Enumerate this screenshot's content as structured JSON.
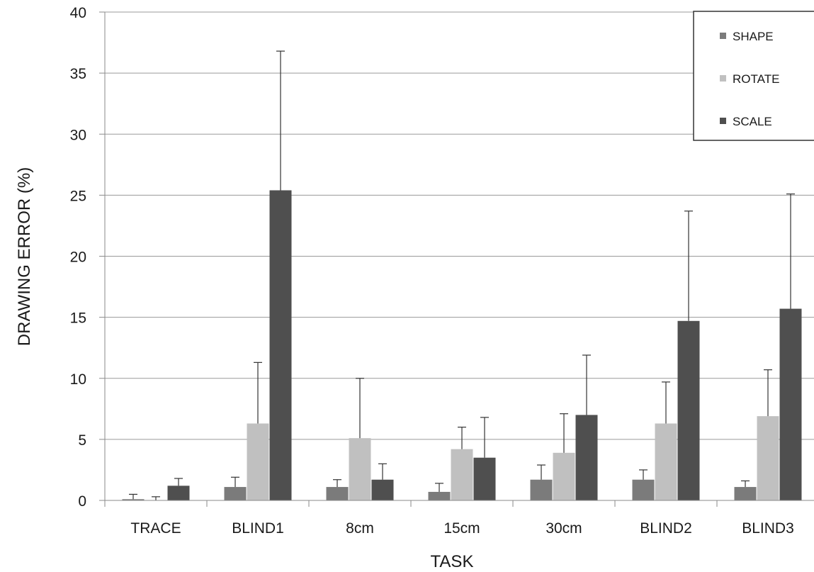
{
  "chart_data": {
    "type": "bar",
    "title": "",
    "xlabel": "TASK",
    "ylabel": "DRAWING ERROR (%)",
    "ylim": [
      0,
      40
    ],
    "yticks": [
      0,
      5,
      10,
      15,
      20,
      25,
      30,
      35,
      40
    ],
    "grid": "horizontal",
    "legend_position": "top-right",
    "categories": [
      "TRACE",
      "BLIND1",
      "8cm",
      "15cm",
      "30cm",
      "BLIND2",
      "BLIND3"
    ],
    "series": [
      {
        "name": "SHAPE",
        "color": "#7b7b7b",
        "values": [
          0.1,
          1.1,
          1.1,
          0.7,
          1.7,
          1.7,
          1.1
        ],
        "error": [
          0.4,
          0.8,
          0.6,
          0.7,
          1.2,
          0.8,
          0.5
        ]
      },
      {
        "name": "ROTATE",
        "color": "#c0c0c0",
        "values": [
          0.0,
          6.3,
          5.1,
          4.2,
          3.9,
          6.3,
          6.9
        ],
        "error": [
          0.3,
          5.0,
          4.9,
          1.8,
          3.2,
          3.4,
          3.8
        ]
      },
      {
        "name": "SCALE",
        "color": "#4f4f4f",
        "values": [
          1.2,
          25.4,
          1.7,
          3.5,
          7.0,
          14.7,
          15.7
        ],
        "error": [
          0.6,
          11.4,
          1.3,
          3.3,
          4.9,
          9.0,
          9.4
        ]
      }
    ]
  }
}
